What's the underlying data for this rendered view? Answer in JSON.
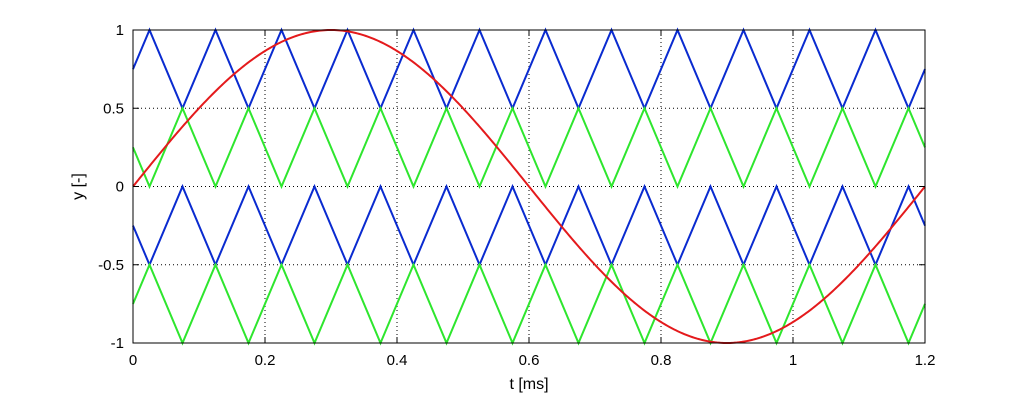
{
  "chart_data": {
    "type": "line",
    "title": "",
    "xlabel": "t [ms]",
    "ylabel": "y [-]",
    "xlim": [
      0,
      1.2
    ],
    "ylim": [
      -1,
      1
    ],
    "grid": true,
    "x_ticks": [
      0,
      0.2,
      0.4,
      0.6,
      0.8,
      1,
      1.2
    ],
    "x_tick_labels": [
      "0",
      "0.2",
      "0.4",
      "0.6",
      "0.8",
      "1",
      "1.2"
    ],
    "y_ticks": [
      1,
      0.5,
      0,
      -0.5,
      -1
    ],
    "y_tick_labels": [
      "1",
      "0.5",
      "0",
      "-0.5",
      "-1"
    ],
    "series": [
      {
        "kind": "sine",
        "color": "#e41a1c",
        "amplitude": 1,
        "period_ms": 1.2
      },
      {
        "kind": "triangle",
        "color": "#0a2bd0",
        "y_min": 0.5,
        "y_max": 1,
        "period_ms": 0.1,
        "x_first_peak_ms": 0.025
      },
      {
        "kind": "triangle",
        "color": "#2ee62e",
        "y_min": 0,
        "y_max": 0.5,
        "period_ms": 0.1,
        "x_first_peak_ms": 0.075
      },
      {
        "kind": "triangle",
        "color": "#0a2bd0",
        "y_min": -0.5,
        "y_max": 0,
        "period_ms": 0.1,
        "x_first_peak_ms": 0.075
      },
      {
        "kind": "triangle",
        "color": "#2ee62e",
        "y_min": -1,
        "y_max": -0.5,
        "period_ms": 0.1,
        "x_first_peak_ms": 0.025
      }
    ]
  }
}
